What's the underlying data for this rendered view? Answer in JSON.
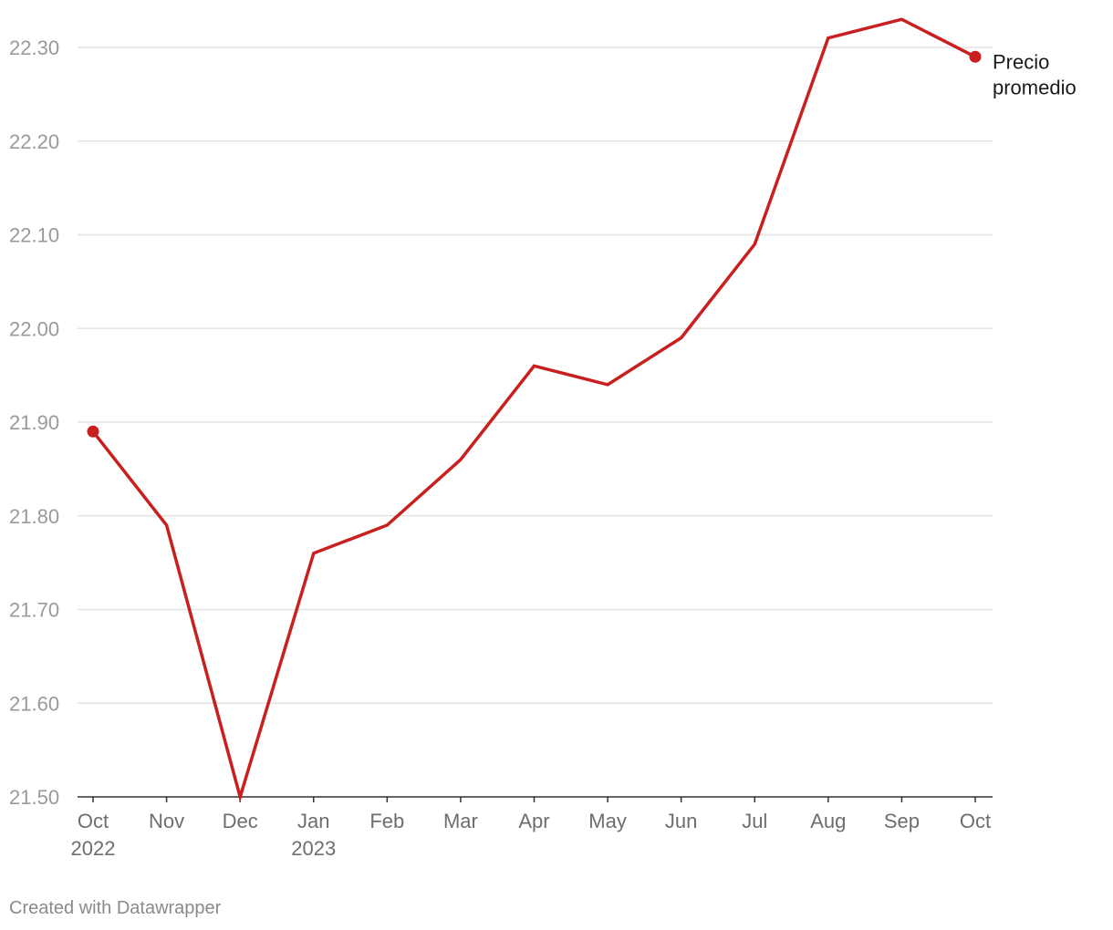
{
  "chart_data": {
    "type": "line",
    "categories": [
      "Oct",
      "Nov",
      "Dec",
      "Jan",
      "Feb",
      "Mar",
      "Apr",
      "May",
      "Jun",
      "Jul",
      "Aug",
      "Sep",
      "Oct"
    ],
    "category_years": [
      "2022",
      "",
      "",
      "2023",
      "",
      "",
      "",
      "",
      "",
      "",
      "",
      "",
      ""
    ],
    "series": [
      {
        "name": "Precio promedio",
        "label_lines": [
          "Precio",
          "promedio"
        ],
        "color": "#c8201f",
        "values": [
          21.89,
          21.79,
          21.5,
          21.76,
          21.79,
          21.86,
          21.96,
          21.94,
          21.99,
          22.09,
          22.31,
          22.33,
          22.29
        ]
      }
    ],
    "ylim": [
      21.5,
      22.3
    ],
    "yticks": [
      21.5,
      21.6,
      21.7,
      21.8,
      21.9,
      22.0,
      22.1,
      22.2,
      22.3
    ],
    "ytick_labels": [
      "21.50",
      "21.60",
      "21.70",
      "21.80",
      "21.90",
      "22.00",
      "22.10",
      "22.20",
      "22.30"
    ],
    "title": "",
    "xlabel": "",
    "ylabel": "",
    "grid": true
  },
  "footer": {
    "credit": "Created with Datawrapper"
  }
}
